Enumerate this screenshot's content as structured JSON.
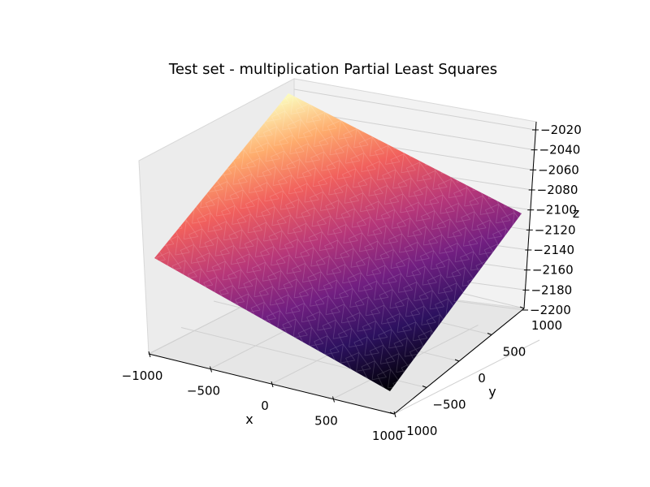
{
  "chart_data": {
    "type": "surface3d",
    "title": "Test set - multiplication Partial Least Squares",
    "xlabel": "x",
    "ylabel": "y",
    "zlabel": "z",
    "xlim": [
      -1000,
      1000
    ],
    "ylim": [
      -1000,
      1000
    ],
    "zlim": [
      -2200,
      -2010
    ],
    "x_ticks": [
      "−1000",
      "−500",
      "0",
      "500",
      "1000"
    ],
    "y_ticks": [
      "−1000",
      "−500",
      "0",
      "500",
      "1000"
    ],
    "z_ticks": [
      "−2020",
      "−2040",
      "−2060",
      "−2080",
      "−2100",
      "−2120",
      "−2140",
      "−2160",
      "−2180",
      "−2200"
    ],
    "surface": {
      "description_points": [
        {
          "x": -1000,
          "y": -1000,
          "z": -2130
        },
        {
          "x": 1000,
          "y": -1000,
          "z": -2200
        },
        {
          "x": 1000,
          "y": 1000,
          "z": -2100
        },
        {
          "x": -1000,
          "y": 1000,
          "z": -2012
        }
      ],
      "colormap": "magma",
      "grid": true
    }
  }
}
